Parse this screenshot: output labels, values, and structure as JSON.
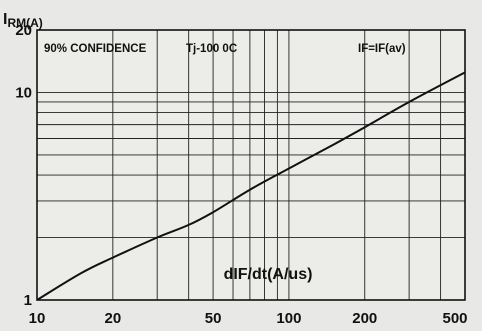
{
  "chart_data": {
    "type": "line",
    "x_scale": "log",
    "y_scale": "log",
    "xlim": [
      10,
      500
    ],
    "ylim": [
      1,
      20
    ],
    "grid": true,
    "x_ticks": [
      "10",
      "20",
      "50",
      "100",
      "200",
      "500"
    ],
    "y_ticks": [
      "1",
      "10",
      "20"
    ],
    "xlabel": "dIF/dt(A/us)",
    "ylabel_main": "I",
    "ylabel_sub": "RM(A)",
    "annotations": [
      "90% CONFIDENCE",
      "Tj-100 0C",
      "IF=IF(av)"
    ],
    "series": [
      {
        "x": [
          10,
          15,
          20,
          30,
          40,
          50,
          70,
          100,
          150,
          200,
          300,
          500
        ],
        "values": [
          1.0,
          1.35,
          1.6,
          2.0,
          2.3,
          2.65,
          3.4,
          4.3,
          5.6,
          6.8,
          9.0,
          12.5
        ]
      }
    ]
  }
}
